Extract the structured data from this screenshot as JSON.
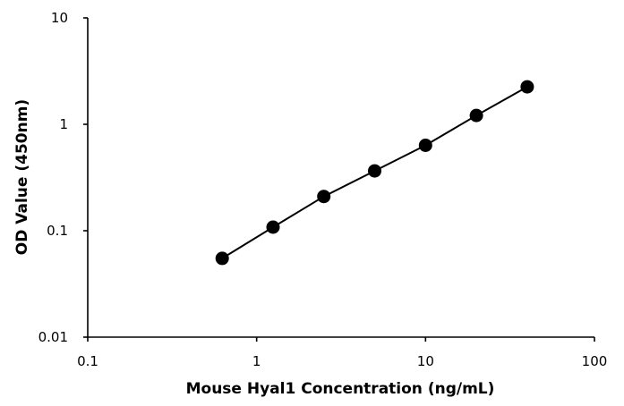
{
  "chart_data": {
    "type": "scatter",
    "xlabel": "Mouse Hyal1 Concentration (ng/mL)",
    "ylabel": "OD Value (450nm)",
    "xscale": "log",
    "yscale": "log",
    "xlim": [
      0.1,
      100
    ],
    "ylim": [
      0.01,
      10
    ],
    "xticks": [
      0.1,
      1,
      10,
      100
    ],
    "xtick_labels": [
      "0.1",
      "1",
      "10",
      "100"
    ],
    "yticks": [
      0.01,
      0.1,
      1,
      10
    ],
    "ytick_labels": [
      "0.01",
      "0.1",
      "1",
      "10"
    ],
    "grid": false,
    "legend": "none",
    "series": [
      {
        "x": [
          0.625,
          1.25,
          2.5,
          5,
          10,
          20,
          40
        ],
        "y": [
          0.055,
          0.108,
          0.21,
          0.365,
          0.635,
          1.21,
          2.25
        ],
        "marker": "circle",
        "line": true,
        "color": "#000000"
      }
    ]
  }
}
